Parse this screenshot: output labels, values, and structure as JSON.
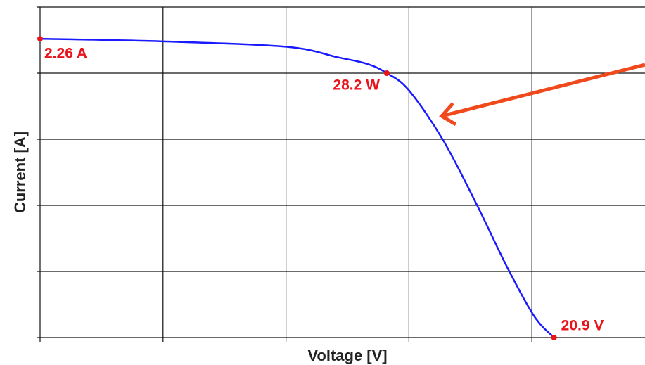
{
  "chart_data": {
    "type": "line",
    "x_label": "Voltage [V]",
    "y_label": "Current [A]",
    "x": [
      0,
      5.0,
      10.0,
      12.1,
      13.3,
      14.1,
      15.0,
      16.4,
      17.8,
      19.0,
      20.1,
      20.9
    ],
    "series": [
      {
        "color": "#1a1aff",
        "values": [
          2.26,
          2.24,
          2.2,
          2.12,
          2.07,
          2.0,
          1.87,
          1.49,
          0.99,
          0.53,
          0.16,
          0
        ]
      }
    ],
    "xlim": [
      0,
      24.6
    ],
    "ylim": [
      0,
      2.5
    ],
    "xticks": [
      0,
      5,
      10,
      15,
      20
    ],
    "yticks": [
      0,
      0.5,
      1,
      1.5,
      2,
      2.5
    ],
    "grid": true,
    "markers": [
      {
        "x": 0,
        "y": 2.26,
        "label": "2.26 A"
      },
      {
        "x": 14.1,
        "y": 2.0,
        "label": "28.2 W"
      },
      {
        "x": 20.9,
        "y": 0,
        "label": "20.9 V"
      }
    ],
    "marker_color": "#e8141b"
  }
}
